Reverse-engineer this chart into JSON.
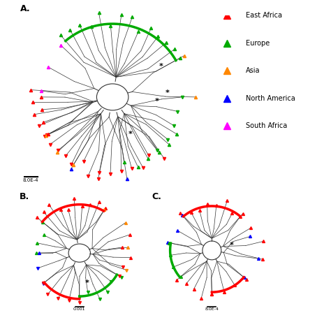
{
  "legend_entries": [
    {
      "label": "East Africa",
      "color": "#ff0000"
    },
    {
      "label": "Europe",
      "color": "#00aa00"
    },
    {
      "label": "Asia",
      "color": "#ff8800"
    },
    {
      "label": "North America",
      "color": "#0000ff"
    },
    {
      "label": "South Africa",
      "color": "#ff00ff"
    }
  ],
  "panel_labels": [
    "A.",
    "B.",
    "C."
  ],
  "bg_color": "#ffffff",
  "line_color": "#333333",
  "marker_size": 5,
  "font_size": 7
}
